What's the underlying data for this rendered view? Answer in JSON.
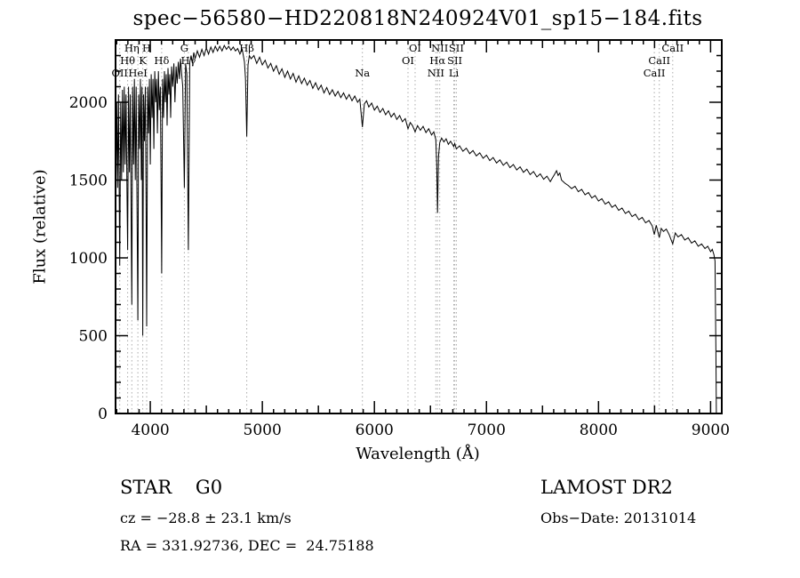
{
  "title": "spec−56580−HD220818N240924V01_sp15−184.fits",
  "footer": {
    "object_type": "STAR    G0",
    "survey": "LAMOST DR2",
    "cz": "cz = −28.8 ± 23.1 km/s",
    "obs_date": "Obs−Date: 20131014",
    "coords": "RA = 331.92736, DEC =  24.75188"
  },
  "chart_data": {
    "type": "line",
    "title": "spec−56580−HD220818N240924V01_sp15−184.fits",
    "xlabel": "Wavelength (Å)",
    "ylabel": "Flux (relative)",
    "xlim": [
      3690,
      9100
    ],
    "ylim": [
      0,
      2400
    ],
    "xticks": [
      4000,
      5000,
      6000,
      7000,
      8000,
      9000
    ],
    "yticks": [
      0,
      500,
      1000,
      1500,
      2000
    ],
    "x_minor_step": 100,
    "x_medium_step": 500,
    "y_minor_step": 100,
    "grid": false,
    "line_color": "#000000",
    "marker_line_color": "#ababab",
    "spectral_lines": [
      {
        "label": "Hη",
        "wl": 3835,
        "row": 0
      },
      {
        "label": "H",
        "wl": 3968,
        "row": 0
      },
      {
        "label": "G",
        "wl": 4304,
        "row": 0
      },
      {
        "label": "Hβ",
        "wl": 4861,
        "row": 0
      },
      {
        "label": "OI",
        "wl": 6363,
        "row": 0
      },
      {
        "label": "NII",
        "wl": 6583,
        "row": 0
      },
      {
        "label": "SII",
        "wl": 6731,
        "row": 0
      },
      {
        "label": "CaII",
        "wl": 8662,
        "row": 0
      },
      {
        "label": "Hθ",
        "wl": 3798,
        "row": 1
      },
      {
        "label": "K",
        "wl": 3933,
        "row": 1
      },
      {
        "label": "Hδ",
        "wl": 4102,
        "row": 1
      },
      {
        "label": "Hγ",
        "wl": 4340,
        "row": 1
      },
      {
        "label": "OI",
        "wl": 6300,
        "row": 1
      },
      {
        "label": "Hα",
        "wl": 6563,
        "row": 1
      },
      {
        "label": "SII",
        "wl": 6717,
        "row": 1
      },
      {
        "label": "CaII",
        "wl": 8542,
        "row": 1
      },
      {
        "label": "OII",
        "wl": 3727,
        "row": 2
      },
      {
        "label": "HeI",
        "wl": 3889,
        "row": 2
      },
      {
        "label": "Na",
        "wl": 5893,
        "row": 2
      },
      {
        "label": "NII",
        "wl": 6548,
        "row": 2
      },
      {
        "label": "Li",
        "wl": 6708,
        "row": 2
      },
      {
        "label": "CaII",
        "wl": 8498,
        "row": 2
      }
    ],
    "spectrum": [
      [
        3692,
        1400
      ],
      [
        3700,
        2000
      ],
      [
        3708,
        1450
      ],
      [
        3716,
        2050
      ],
      [
        3727,
        950
      ],
      [
        3736,
        2000
      ],
      [
        3744,
        1500
      ],
      [
        3752,
        2080
      ],
      [
        3760,
        1550
      ],
      [
        3768,
        2100
      ],
      [
        3776,
        1600
      ],
      [
        3784,
        2050
      ],
      [
        3792,
        1400
      ],
      [
        3798,
        1050
      ],
      [
        3806,
        2100
      ],
      [
        3814,
        1550
      ],
      [
        3822,
        2050
      ],
      [
        3830,
        1200
      ],
      [
        3835,
        700
      ],
      [
        3842,
        2100
      ],
      [
        3850,
        1600
      ],
      [
        3858,
        2150
      ],
      [
        3866,
        1500
      ],
      [
        3874,
        2100
      ],
      [
        3882,
        1300
      ],
      [
        3889,
        600
      ],
      [
        3896,
        2050
      ],
      [
        3904,
        1700
      ],
      [
        3912,
        2150
      ],
      [
        3920,
        1500
      ],
      [
        3926,
        2100
      ],
      [
        3933,
        500
      ],
      [
        3940,
        2050
      ],
      [
        3948,
        1750
      ],
      [
        3956,
        2100
      ],
      [
        3962,
        1400
      ],
      [
        3968,
        560
      ],
      [
        3976,
        2100
      ],
      [
        3984,
        1800
      ],
      [
        3992,
        2150
      ],
      [
        4000,
        1600
      ],
      [
        4008,
        2180
      ],
      [
        4016,
        1900
      ],
      [
        4024,
        2150
      ],
      [
        4032,
        1700
      ],
      [
        4040,
        2200
      ],
      [
        4048,
        2000
      ],
      [
        4056,
        2150
      ],
      [
        4064,
        1800
      ],
      [
        4072,
        2200
      ],
      [
        4080,
        1950
      ],
      [
        4090,
        2100
      ],
      [
        4096,
        1500
      ],
      [
        4102,
        900
      ],
      [
        4110,
        2150
      ],
      [
        4118,
        1900
      ],
      [
        4126,
        2200
      ],
      [
        4134,
        2000
      ],
      [
        4142,
        2180
      ],
      [
        4150,
        1850
      ],
      [
        4158,
        2220
      ],
      [
        4166,
        2050
      ],
      [
        4174,
        2180
      ],
      [
        4182,
        1900
      ],
      [
        4190,
        2230
      ],
      [
        4200,
        2100
      ],
      [
        4210,
        2250
      ],
      [
        4220,
        2000
      ],
      [
        4230,
        2230
      ],
      [
        4240,
        2120
      ],
      [
        4250,
        2260
      ],
      [
        4260,
        2150
      ],
      [
        4270,
        2280
      ],
      [
        4280,
        2180
      ],
      [
        4290,
        2100
      ],
      [
        4304,
        1450
      ],
      [
        4315,
        2250
      ],
      [
        4326,
        2180
      ],
      [
        4340,
        1050
      ],
      [
        4352,
        2260
      ],
      [
        4364,
        2300
      ],
      [
        4376,
        2250
      ],
      [
        4388,
        2320
      ],
      [
        4400,
        2280
      ],
      [
        4420,
        2330
      ],
      [
        4440,
        2290
      ],
      [
        4460,
        2340
      ],
      [
        4480,
        2300
      ],
      [
        4500,
        2350
      ],
      [
        4520,
        2310
      ],
      [
        4540,
        2355
      ],
      [
        4560,
        2320
      ],
      [
        4580,
        2360
      ],
      [
        4600,
        2330
      ],
      [
        4620,
        2360
      ],
      [
        4640,
        2330
      ],
      [
        4660,
        2365
      ],
      [
        4680,
        2340
      ],
      [
        4700,
        2360
      ],
      [
        4720,
        2335
      ],
      [
        4740,
        2355
      ],
      [
        4760,
        2330
      ],
      [
        4780,
        2345
      ],
      [
        4800,
        2310
      ],
      [
        4820,
        2340
      ],
      [
        4840,
        2260
      ],
      [
        4850,
        2150
      ],
      [
        4861,
        1780
      ],
      [
        4872,
        2240
      ],
      [
        4884,
        2300
      ],
      [
        4900,
        2280
      ],
      [
        4925,
        2300
      ],
      [
        4950,
        2250
      ],
      [
        4975,
        2290
      ],
      [
        5000,
        2240
      ],
      [
        5025,
        2270
      ],
      [
        5050,
        2220
      ],
      [
        5075,
        2250
      ],
      [
        5100,
        2200
      ],
      [
        5125,
        2235
      ],
      [
        5150,
        2180
      ],
      [
        5175,
        2215
      ],
      [
        5200,
        2160
      ],
      [
        5225,
        2200
      ],
      [
        5250,
        2150
      ],
      [
        5275,
        2185
      ],
      [
        5300,
        2130
      ],
      [
        5325,
        2170
      ],
      [
        5350,
        2120
      ],
      [
        5375,
        2155
      ],
      [
        5400,
        2110
      ],
      [
        5425,
        2140
      ],
      [
        5450,
        2090
      ],
      [
        5475,
        2125
      ],
      [
        5500,
        2080
      ],
      [
        5525,
        2110
      ],
      [
        5550,
        2060
      ],
      [
        5575,
        2095
      ],
      [
        5600,
        2050
      ],
      [
        5625,
        2080
      ],
      [
        5650,
        2040
      ],
      [
        5675,
        2070
      ],
      [
        5700,
        2030
      ],
      [
        5725,
        2060
      ],
      [
        5750,
        2020
      ],
      [
        5775,
        2050
      ],
      [
        5800,
        2010
      ],
      [
        5825,
        2040
      ],
      [
        5850,
        2000
      ],
      [
        5870,
        2020
      ],
      [
        5893,
        1840
      ],
      [
        5910,
        1990
      ],
      [
        5930,
        2010
      ],
      [
        5950,
        1970
      ],
      [
        5975,
        1995
      ],
      [
        6000,
        1950
      ],
      [
        6025,
        1975
      ],
      [
        6050,
        1935
      ],
      [
        6075,
        1960
      ],
      [
        6100,
        1920
      ],
      [
        6125,
        1945
      ],
      [
        6150,
        1905
      ],
      [
        6175,
        1930
      ],
      [
        6200,
        1890
      ],
      [
        6225,
        1915
      ],
      [
        6250,
        1875
      ],
      [
        6275,
        1895
      ],
      [
        6300,
        1830
      ],
      [
        6320,
        1870
      ],
      [
        6340,
        1850
      ],
      [
        6363,
        1810
      ],
      [
        6385,
        1850
      ],
      [
        6410,
        1820
      ],
      [
        6435,
        1845
      ],
      [
        6460,
        1805
      ],
      [
        6485,
        1830
      ],
      [
        6510,
        1790
      ],
      [
        6530,
        1810
      ],
      [
        6548,
        1760
      ],
      [
        6556,
        1600
      ],
      [
        6563,
        1290
      ],
      [
        6572,
        1650
      ],
      [
        6583,
        1740
      ],
      [
        6600,
        1770
      ],
      [
        6620,
        1745
      ],
      [
        6640,
        1765
      ],
      [
        6660,
        1730
      ],
      [
        6680,
        1750
      ],
      [
        6708,
        1715
      ],
      [
        6717,
        1735
      ],
      [
        6731,
        1700
      ],
      [
        6760,
        1720
      ],
      [
        6790,
        1685
      ],
      [
        6820,
        1705
      ],
      [
        6850,
        1670
      ],
      [
        6880,
        1690
      ],
      [
        6910,
        1655
      ],
      [
        6940,
        1675
      ],
      [
        6970,
        1640
      ],
      [
        7000,
        1660
      ],
      [
        7030,
        1625
      ],
      [
        7060,
        1645
      ],
      [
        7090,
        1610
      ],
      [
        7120,
        1630
      ],
      [
        7150,
        1595
      ],
      [
        7180,
        1615
      ],
      [
        7210,
        1580
      ],
      [
        7240,
        1600
      ],
      [
        7270,
        1565
      ],
      [
        7300,
        1585
      ],
      [
        7330,
        1550
      ],
      [
        7360,
        1570
      ],
      [
        7390,
        1535
      ],
      [
        7420,
        1555
      ],
      [
        7450,
        1520
      ],
      [
        7480,
        1540
      ],
      [
        7510,
        1505
      ],
      [
        7540,
        1525
      ],
      [
        7570,
        1490
      ],
      [
        7590,
        1515
      ],
      [
        7610,
        1540
      ],
      [
        7625,
        1560
      ],
      [
        7640,
        1530
      ],
      [
        7655,
        1545
      ],
      [
        7670,
        1500
      ],
      [
        7700,
        1480
      ],
      [
        7730,
        1465
      ],
      [
        7760,
        1445
      ],
      [
        7790,
        1460
      ],
      [
        7820,
        1425
      ],
      [
        7850,
        1440
      ],
      [
        7880,
        1405
      ],
      [
        7910,
        1420
      ],
      [
        7940,
        1385
      ],
      [
        7970,
        1400
      ],
      [
        8000,
        1365
      ],
      [
        8030,
        1380
      ],
      [
        8060,
        1345
      ],
      [
        8090,
        1360
      ],
      [
        8120,
        1325
      ],
      [
        8150,
        1340
      ],
      [
        8180,
        1305
      ],
      [
        8210,
        1320
      ],
      [
        8240,
        1285
      ],
      [
        8270,
        1300
      ],
      [
        8300,
        1265
      ],
      [
        8330,
        1280
      ],
      [
        8360,
        1245
      ],
      [
        8390,
        1260
      ],
      [
        8420,
        1225
      ],
      [
        8450,
        1240
      ],
      [
        8480,
        1205
      ],
      [
        8498,
        1150
      ],
      [
        8515,
        1210
      ],
      [
        8542,
        1130
      ],
      [
        8560,
        1190
      ],
      [
        8580,
        1170
      ],
      [
        8605,
        1185
      ],
      [
        8630,
        1150
      ],
      [
        8662,
        1090
      ],
      [
        8685,
        1160
      ],
      [
        8710,
        1135
      ],
      [
        8740,
        1150
      ],
      [
        8770,
        1115
      ],
      [
        8800,
        1130
      ],
      [
        8830,
        1095
      ],
      [
        8860,
        1110
      ],
      [
        8890,
        1075
      ],
      [
        8920,
        1090
      ],
      [
        8950,
        1060
      ],
      [
        8975,
        1075
      ],
      [
        9000,
        1040
      ],
      [
        9015,
        1055
      ],
      [
        9030,
        1020
      ],
      [
        9040,
        980
      ],
      [
        9048,
        400
      ],
      [
        9052,
        0
      ]
    ]
  }
}
